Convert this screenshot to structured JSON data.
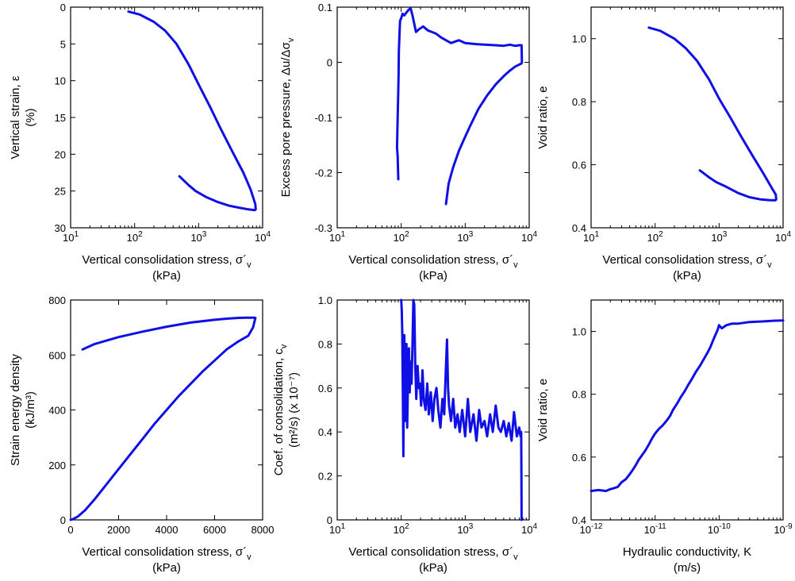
{
  "chart_data": [
    {
      "type": "line",
      "xlabel": [
        "Vertical consolidation stress, σ´v",
        "(kPa)"
      ],
      "ylabel": [
        "Vertical strain, ε",
        "(%)"
      ],
      "xscale": "log",
      "xlim": [
        10,
        10000
      ],
      "xticks": [
        "10^1",
        "10^2",
        "10^3",
        "10^4"
      ],
      "ylim": [
        0,
        30
      ],
      "yreversed": true,
      "yticks": [
        "0",
        "5",
        "10",
        "15",
        "20",
        "25",
        "30"
      ],
      "series": [
        {
          "color": "#1010e6",
          "x": [
            80,
            120,
            200,
            300,
            450,
            700,
            1000,
            1500,
            2200,
            3300,
            5000,
            6500,
            7700,
            7800,
            7500,
            6000,
            4500,
            3000,
            2000,
            1300,
            900,
            700,
            500
          ],
          "y": [
            0.6,
            1.0,
            2.0,
            3.2,
            5.0,
            7.8,
            10.5,
            13.5,
            16.5,
            19.5,
            22.5,
            24.8,
            26.8,
            27.5,
            27.6,
            27.5,
            27.3,
            27.0,
            26.5,
            25.8,
            25.0,
            24.2,
            23.0
          ]
        }
      ]
    },
    {
      "type": "line",
      "xlabel": [
        "Vertical consolidation stress, σ´v",
        "(kPa)"
      ],
      "ylabel": [
        "Excess pore pressure, Δu/Δσv"
      ],
      "xscale": "log",
      "xlim": [
        10,
        10000
      ],
      "xticks": [
        "10^1",
        "10^2",
        "10^3",
        "10^4"
      ],
      "ylim": [
        -0.3,
        0.1
      ],
      "yticks": [
        "0.1",
        "0",
        "-0.1",
        "-0.2",
        "-0.3"
      ],
      "series": [
        {
          "color": "#1010e6",
          "x": [
            90,
            88,
            86,
            88,
            90,
            91,
            92,
            94,
            96,
            100,
            105,
            112,
            120,
            130,
            140,
            150,
            170,
            190,
            220,
            260,
            300,
            350,
            420,
            500,
            600,
            800,
            1000,
            1500,
            2000,
            3000,
            4000,
            5000,
            6000,
            7000,
            7600,
            7700,
            7600,
            7000,
            6000,
            5000,
            4000,
            3000,
            2200,
            1600,
            1200,
            1000,
            800,
            650,
            550,
            500
          ],
          "y": [
            -0.212,
            -0.17,
            -0.155,
            -0.1,
            -0.05,
            -0.02,
            0.02,
            0.05,
            0.075,
            0.08,
            0.088,
            0.085,
            0.09,
            0.095,
            0.098,
            0.085,
            0.055,
            0.06,
            0.065,
            0.058,
            0.055,
            0.052,
            0.045,
            0.04,
            0.035,
            0.04,
            0.035,
            0.033,
            0.032,
            0.031,
            0.03,
            0.032,
            0.03,
            0.031,
            0.031,
            0.0,
            -0.002,
            -0.004,
            -0.008,
            -0.015,
            -0.025,
            -0.04,
            -0.06,
            -0.085,
            -0.115,
            -0.135,
            -0.16,
            -0.19,
            -0.22,
            -0.257
          ]
        }
      ]
    },
    {
      "type": "line",
      "xlabel": [
        "Vertical consolidation stress, σ´v",
        "(kPa)"
      ],
      "ylabel": [
        "Void ratio, e"
      ],
      "xscale": "log",
      "xlim": [
        10,
        10000
      ],
      "xticks": [
        "10^1",
        "10^2",
        "10^3",
        "10^4"
      ],
      "ylim": [
        0.4,
        1.1
      ],
      "yticks": [
        "0.4",
        "0.6",
        "0.8",
        "1.0"
      ],
      "series": [
        {
          "color": "#1010e6",
          "x": [
            80,
            120,
            200,
            300,
            450,
            700,
            1000,
            1500,
            2200,
            3300,
            5000,
            6500,
            7700,
            7800,
            7500,
            6000,
            4500,
            3000,
            2000,
            1300,
            900,
            700,
            500
          ],
          "y": [
            1.035,
            1.025,
            1.0,
            0.97,
            0.93,
            0.87,
            0.81,
            0.75,
            0.69,
            0.63,
            0.57,
            0.53,
            0.505,
            0.49,
            0.487,
            0.488,
            0.49,
            0.497,
            0.51,
            0.53,
            0.545,
            0.56,
            0.582
          ]
        }
      ]
    },
    {
      "type": "line",
      "xlabel": [
        "Vertical consolidation stress, σ´v",
        "(kPa)"
      ],
      "ylabel": [
        "Strain energy density",
        "(kJ/m³)"
      ],
      "xscale": "linear",
      "xlim": [
        0,
        8000
      ],
      "xticks": [
        "0",
        "2000",
        "4000",
        "6000",
        "8000"
      ],
      "ylim": [
        0,
        800
      ],
      "yticks": [
        "0",
        "200",
        "400",
        "600",
        "800"
      ],
      "series": [
        {
          "color": "#1010e6",
          "x": [
            0,
            100,
            300,
            600,
            1000,
            1500,
            2000,
            2500,
            3000,
            3500,
            4000,
            4500,
            5000,
            5500,
            6000,
            6500,
            7000,
            7400,
            7600,
            7700,
            7600,
            7300,
            7000,
            6500,
            6000,
            5000,
            4000,
            3000,
            2000,
            1000,
            500
          ],
          "y": [
            0,
            3,
            12,
            35,
            75,
            130,
            185,
            240,
            295,
            350,
            400,
            450,
            495,
            540,
            580,
            620,
            650,
            670,
            700,
            735,
            736,
            736,
            735,
            732,
            728,
            718,
            703,
            685,
            665,
            640,
            620
          ]
        }
      ]
    },
    {
      "type": "line",
      "xlabel": [
        "Vertical consolidation stress, σ´v",
        "(kPa)"
      ],
      "ylabel": [
        "Coef. of consolidation, cv",
        "(m²/s) (x 10⁻⁷)"
      ],
      "xscale": "log",
      "xlim": [
        10,
        10000
      ],
      "xticks": [
        "10^1",
        "10^2",
        "10^3",
        "10^4"
      ],
      "ylim": [
        0,
        1.0
      ],
      "yticks": [
        "0",
        "0.2",
        "0.4",
        "0.6",
        "0.8",
        "1.0"
      ],
      "series": [
        {
          "color": "#1010e6",
          "x": [
            100,
            102,
            104,
            106,
            108,
            110,
            112,
            115,
            118,
            121,
            124,
            128,
            132,
            136,
            140,
            145,
            150,
            155,
            160,
            166,
            172,
            180,
            188,
            196,
            205,
            215,
            225,
            240,
            255,
            270,
            290,
            310,
            330,
            355,
            380,
            410,
            440,
            470,
            500,
            520,
            540,
            560,
            600,
            650,
            700,
            760,
            820,
            900,
            1000,
            1100,
            1200,
            1350,
            1500,
            1650,
            1800,
            2000,
            2200,
            2450,
            2700,
            3000,
            3300,
            3600,
            4000,
            4400,
            4800,
            5300,
            5800,
            6400,
            7000,
            7300,
            7500,
            7550,
            7600
          ],
          "y": [
            1.0,
            0.95,
            0.85,
            0.6,
            0.29,
            0.75,
            0.84,
            0.45,
            0.6,
            0.8,
            0.42,
            0.65,
            0.78,
            0.58,
            0.72,
            0.62,
            0.8,
            1.0,
            0.98,
            0.7,
            0.55,
            0.7,
            0.6,
            0.62,
            0.52,
            0.68,
            0.55,
            0.5,
            0.62,
            0.48,
            0.58,
            0.45,
            0.55,
            0.6,
            0.5,
            0.42,
            0.55,
            0.48,
            0.7,
            0.82,
            0.6,
            0.52,
            0.45,
            0.55,
            0.42,
            0.48,
            0.4,
            0.5,
            0.38,
            0.55,
            0.4,
            0.48,
            0.36,
            0.5,
            0.42,
            0.45,
            0.38,
            0.48,
            0.4,
            0.52,
            0.42,
            0.4,
            0.45,
            0.38,
            0.44,
            0.36,
            0.49,
            0.38,
            0.42,
            0.38,
            0.4,
            0.2,
            0.0
          ]
        }
      ]
    },
    {
      "type": "line",
      "xlabel": [
        "Hydraulic conductivity, K",
        "(m/s)"
      ],
      "ylabel": [
        "Void ratio, e"
      ],
      "xscale": "log",
      "xlim": [
        1e-12,
        1e-09
      ],
      "xticks": [
        "10^-12",
        "10^-11",
        "10^-10",
        "10^-9"
      ],
      "ylim": [
        0.4,
        1.1
      ],
      "yticks": [
        "0.4",
        "0.6",
        "0.8",
        "1.0"
      ],
      "series": [
        {
          "color": "#1010e6",
          "x": [
            1e-12,
            1.3e-12,
            1.7e-12,
            2e-12,
            2.2e-12,
            2.6e-12,
            3e-12,
            3.5e-12,
            4e-12,
            4.5e-12,
            5e-12,
            5.5e-12,
            6.2e-12,
            7e-12,
            8e-12,
            9e-12,
            1e-11,
            1.15e-11,
            1.3e-11,
            1.5e-11,
            1.7e-11,
            1.9e-11,
            2.2e-11,
            2.5e-11,
            2.9e-11,
            3.3e-11,
            3.8e-11,
            4.3e-11,
            5e-11,
            5.7e-11,
            6.5e-11,
            7.3e-11,
            8e-11,
            8.8e-11,
            9.5e-11,
            1e-10,
            1.1e-10,
            1.3e-10,
            1.6e-10,
            2e-10,
            3e-10,
            5e-10,
            7e-10,
            1e-09
          ],
          "y": [
            0.492,
            0.495,
            0.492,
            0.498,
            0.5,
            0.505,
            0.52,
            0.53,
            0.545,
            0.56,
            0.575,
            0.59,
            0.605,
            0.62,
            0.64,
            0.66,
            0.675,
            0.69,
            0.7,
            0.715,
            0.73,
            0.75,
            0.77,
            0.79,
            0.81,
            0.83,
            0.85,
            0.87,
            0.89,
            0.91,
            0.93,
            0.95,
            0.97,
            0.99,
            1.005,
            1.02,
            1.01,
            1.02,
            1.025,
            1.025,
            1.03,
            1.032,
            1.034,
            1.035
          ]
        }
      ]
    }
  ]
}
